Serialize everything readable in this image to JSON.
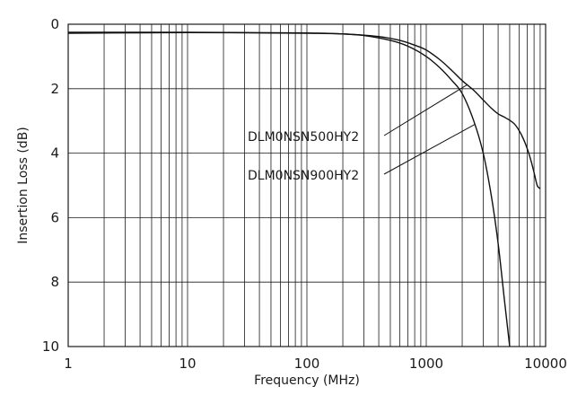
{
  "chart_data": {
    "type": "line",
    "title": "",
    "xlabel": "Frequency (MHz)",
    "ylabel": "Insertion Loss (dB)",
    "x_scale": "log",
    "xlim": [
      1,
      10000
    ],
    "ylim": [
      0,
      10
    ],
    "y_inverted": true,
    "grid": true,
    "x_ticks": [
      1,
      10,
      100,
      1000,
      10000
    ],
    "x_tick_labels": [
      "1",
      "10",
      "100",
      "1000",
      "10000"
    ],
    "y_ticks": [
      0,
      2,
      4,
      6,
      8,
      10
    ],
    "y_tick_labels": [
      "0",
      "2",
      "4",
      "6",
      "8",
      "10"
    ],
    "series": [
      {
        "name": "DLM0NSN500HY2",
        "x": [
          1,
          10,
          100,
          200,
          400,
          600,
          800,
          1000,
          1300,
          1600,
          2000,
          2500,
          3000,
          3500,
          4000,
          4500,
          5000,
          5500,
          6000,
          6500,
          7000,
          7500,
          8000,
          8500,
          9000
        ],
        "y": [
          0.28,
          0.26,
          0.28,
          0.3,
          0.38,
          0.5,
          0.65,
          0.8,
          1.1,
          1.4,
          1.75,
          2.05,
          2.35,
          2.6,
          2.78,
          2.88,
          2.98,
          3.1,
          3.3,
          3.55,
          3.85,
          4.2,
          4.6,
          5.0,
          5.1
        ]
      },
      {
        "name": "DLM0NSN900HY2",
        "x": [
          1,
          10,
          100,
          200,
          300,
          500,
          700,
          1000,
          1300,
          1600,
          2000,
          2500,
          3000,
          3500,
          4000,
          4500,
          5000
        ],
        "y": [
          0.25,
          0.25,
          0.27,
          0.3,
          0.35,
          0.5,
          0.68,
          1.0,
          1.35,
          1.7,
          2.15,
          3.0,
          4.0,
          5.3,
          6.8,
          8.5,
          10.0
        ]
      }
    ],
    "annotations": [
      {
        "text": "DLM0NSN500HY2",
        "series": 0
      },
      {
        "text": "DLM0NSN900HY2",
        "series": 1
      }
    ]
  }
}
